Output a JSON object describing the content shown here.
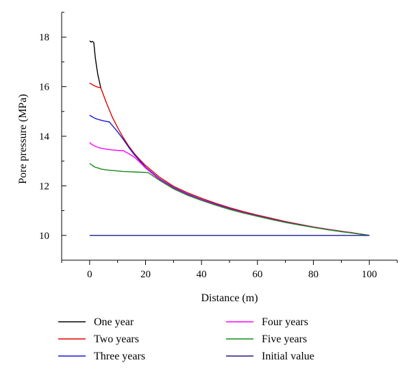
{
  "chart_data": {
    "type": "line",
    "xlabel": "Distance (m)",
    "ylabel": "Pore pressure (MPa)",
    "xlim": [
      -10,
      110
    ],
    "ylim": [
      9,
      19
    ],
    "xticks": [
      0,
      20,
      40,
      60,
      80,
      100
    ],
    "yticks": [
      10,
      12,
      14,
      16,
      18
    ],
    "grid": false,
    "legend_position": "bottom",
    "series": [
      {
        "name": "One year",
        "color": "#000000",
        "x": [
          0,
          0.5,
          1,
          1.5,
          2,
          2.5,
          3,
          3.5,
          4
        ],
        "y": [
          17.85,
          17.8,
          17.83,
          17.78,
          17.2,
          16.8,
          16.45,
          16.2,
          15.95
        ]
      },
      {
        "name": "Two years",
        "color": "#e00000",
        "x": [
          0,
          1,
          2,
          3,
          4,
          6,
          8,
          10,
          12,
          14,
          16,
          18,
          20,
          25,
          30,
          35,
          40,
          45,
          50,
          55,
          60,
          65,
          70,
          75,
          80,
          85,
          90,
          95,
          100
        ],
        "y": [
          16.15,
          16.08,
          16.02,
          15.98,
          15.95,
          15.35,
          14.8,
          14.35,
          13.95,
          13.6,
          13.3,
          13.05,
          12.82,
          12.35,
          11.98,
          11.72,
          11.5,
          11.3,
          11.12,
          10.96,
          10.82,
          10.69,
          10.56,
          10.45,
          10.34,
          10.25,
          10.17,
          10.09,
          10.0
        ]
      },
      {
        "name": "Three years",
        "color": "#1515d8",
        "x": [
          0,
          1,
          2,
          3,
          4,
          5,
          6,
          7,
          8,
          10,
          12,
          14,
          16,
          18,
          20,
          25,
          30,
          35,
          40,
          45,
          50,
          55,
          60,
          65,
          70,
          75,
          80,
          85,
          90,
          95,
          100
        ],
        "y": [
          14.85,
          14.78,
          14.72,
          14.68,
          14.65,
          14.62,
          14.6,
          14.58,
          14.45,
          14.18,
          13.88,
          13.55,
          13.25,
          13.0,
          12.75,
          12.28,
          11.93,
          11.67,
          11.45,
          11.26,
          11.08,
          10.93,
          10.79,
          10.66,
          10.54,
          10.43,
          10.33,
          10.24,
          10.16,
          10.08,
          10.0
        ]
      },
      {
        "name": "Four years",
        "color": "#ff00ff",
        "x": [
          0,
          1,
          2,
          3,
          4,
          6,
          8,
          10,
          12,
          14,
          16,
          18,
          20,
          25,
          30,
          35,
          40,
          45,
          50,
          55,
          60,
          65,
          70,
          75,
          80,
          85,
          90,
          95,
          100
        ],
        "y": [
          13.75,
          13.65,
          13.6,
          13.55,
          13.52,
          13.48,
          13.45,
          13.43,
          13.42,
          13.3,
          13.15,
          12.95,
          12.72,
          12.25,
          11.9,
          11.64,
          11.43,
          11.24,
          11.06,
          10.92,
          10.78,
          10.65,
          10.53,
          10.42,
          10.33,
          10.24,
          10.16,
          10.08,
          10.0
        ]
      },
      {
        "name": "Five years",
        "color": "#158a15",
        "x": [
          0,
          1,
          2,
          3,
          4,
          6,
          8,
          10,
          12,
          14,
          16,
          18,
          20,
          21,
          22,
          25,
          30,
          35,
          40,
          45,
          50,
          55,
          60,
          65,
          70,
          75,
          80,
          85,
          90,
          95,
          100
        ],
        "y": [
          12.9,
          12.82,
          12.75,
          12.72,
          12.68,
          12.64,
          12.62,
          12.6,
          12.58,
          12.57,
          12.56,
          12.55,
          12.54,
          12.53,
          12.45,
          12.22,
          11.88,
          11.62,
          11.41,
          11.22,
          11.05,
          10.9,
          10.77,
          10.64,
          10.52,
          10.42,
          10.32,
          10.23,
          10.15,
          10.08,
          10.0
        ]
      },
      {
        "name": "Initial value",
        "color": "#1a1a8c",
        "x": [
          0,
          100
        ],
        "y": [
          10.0,
          10.0
        ]
      }
    ]
  }
}
